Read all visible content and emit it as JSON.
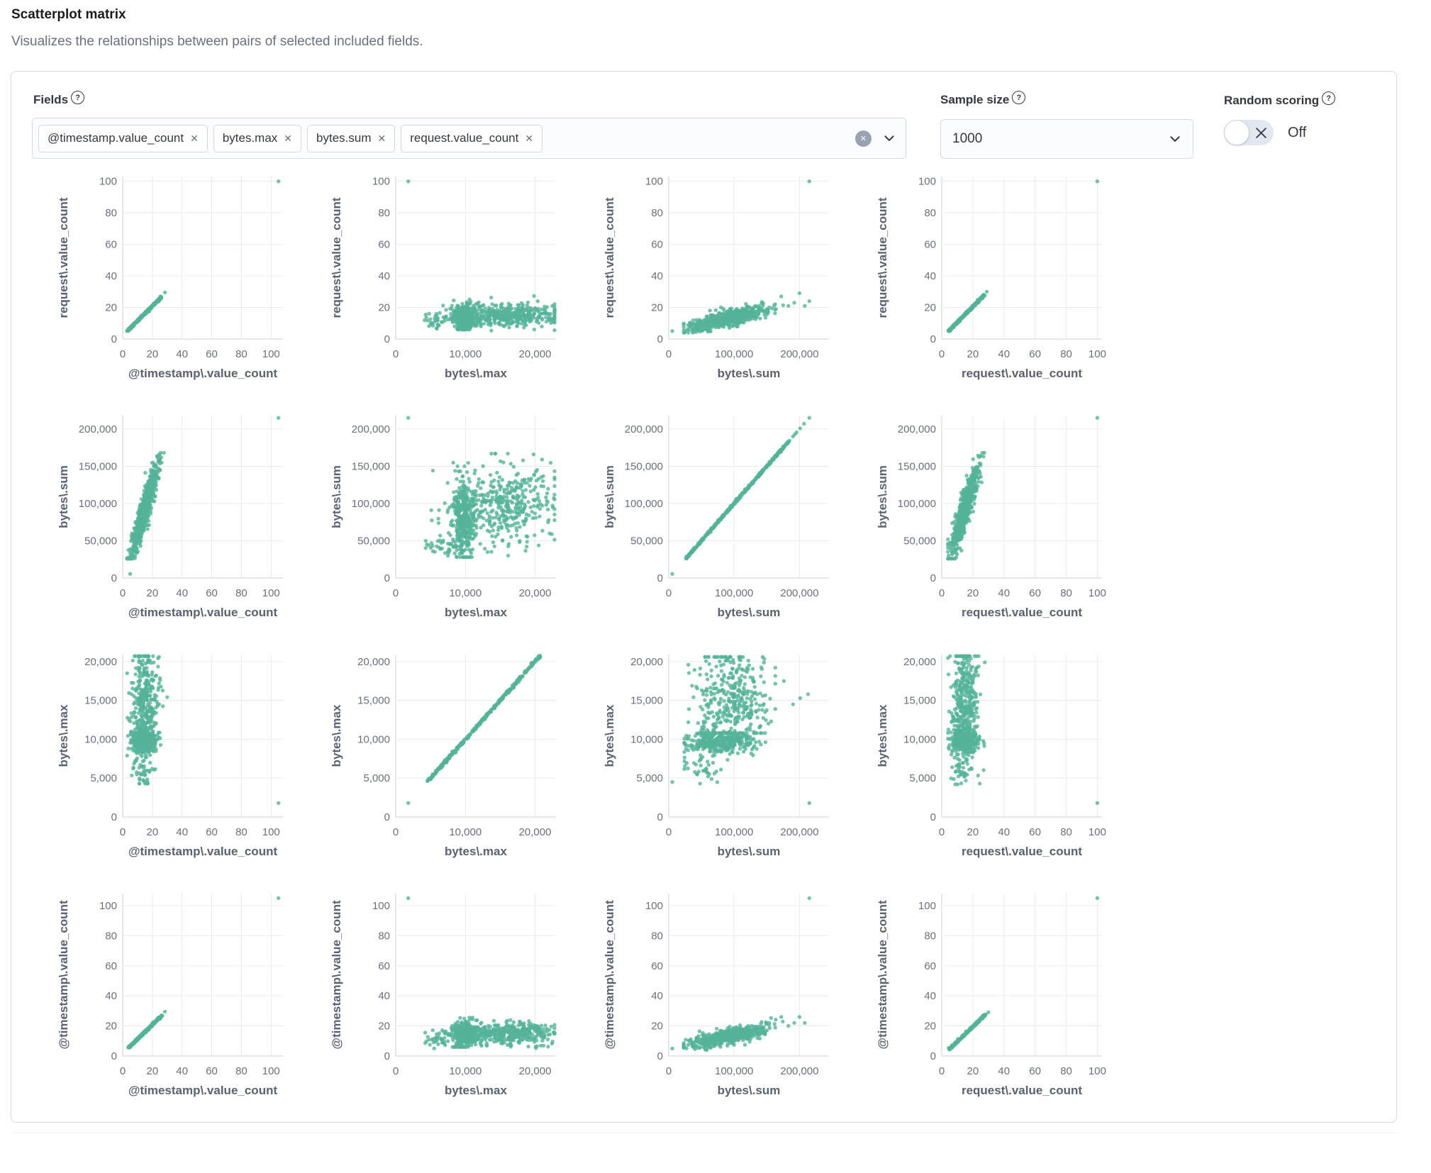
{
  "header": {
    "title": "Scatterplot matrix",
    "subtitle": "Visualizes the relationships between pairs of selected included fields."
  },
  "icons": {
    "help": "?",
    "close": "✕",
    "clear": "✕"
  },
  "controls": {
    "fields": {
      "label": "Fields",
      "selected": [
        "@timestamp.value_count",
        "bytes.max",
        "bytes.sum",
        "request.value_count"
      ]
    },
    "sample_size": {
      "label": "Sample size",
      "value": "1000"
    },
    "random_scoring": {
      "label": "Random scoring",
      "state": "Off"
    }
  },
  "chart_data": {
    "type": "scatter",
    "layout": "scatterplot-matrix",
    "point_color": "#54B399",
    "point_opacity": 0.8,
    "grid_color": "#e8ebf2",
    "domain_color": "#c9d0db",
    "tick_color": "#69707d",
    "title_color": "#5a6270",
    "rows": [
      "request.value_count",
      "bytes.sum",
      "bytes.max",
      "@timestamp.value_count"
    ],
    "cols": [
      "@timestamp.value_count",
      "bytes.max",
      "bytes.sum",
      "request.value_count"
    ],
    "axes": {
      "@timestamp.value_count": {
        "title": "@timestamp\\.value_count",
        "xlim": [
          0,
          108
        ],
        "ylim": [
          0,
          108
        ],
        "xticks": [
          0,
          20,
          40,
          60,
          80,
          100
        ],
        "yticks": [
          0,
          20,
          40,
          60,
          80,
          100
        ],
        "xtick_labels": [
          "0",
          "20",
          "40",
          "60",
          "80",
          "100"
        ],
        "ytick_labels": [
          "0",
          "20",
          "40",
          "60",
          "80",
          "100"
        ]
      },
      "request.value_count": {
        "title": "request\\.value_count",
        "xlim": [
          0,
          103
        ],
        "ylim": [
          0,
          103
        ],
        "xticks": [
          0,
          20,
          40,
          60,
          80,
          100
        ],
        "yticks": [
          0,
          20,
          40,
          60,
          80,
          100
        ],
        "xtick_labels": [
          "0",
          "20",
          "40",
          "60",
          "80",
          "100"
        ],
        "ytick_labels": [
          "0",
          "20",
          "40",
          "60",
          "80",
          "100"
        ]
      },
      "bytes.max": {
        "title": "bytes\\.max",
        "xlim": [
          0,
          23000
        ],
        "ylim": [
          0,
          20900
        ],
        "xticks": [
          0,
          10000,
          20000
        ],
        "yticks": [
          0,
          5000,
          10000,
          15000,
          20000
        ],
        "xtick_labels": [
          "0",
          "10,000",
          "20,000"
        ],
        "ytick_labels": [
          "0",
          "5,000",
          "10,000",
          "15,000",
          "20,000"
        ]
      },
      "bytes.sum": {
        "title": "bytes\\.sum",
        "xlim": [
          0,
          245000
        ],
        "ylim": [
          0,
          218000
        ],
        "xticks": [
          0,
          100000,
          200000
        ],
        "yticks": [
          0,
          50000,
          100000,
          150000,
          200000
        ],
        "xtick_labels": [
          "0",
          "100,000",
          "200,000"
        ],
        "ytick_labels": [
          "0",
          "50,000",
          "100,000",
          "150,000",
          "200,000"
        ]
      }
    },
    "cells": [
      [
        {
          "gen": [
            {
              "kind": "line",
              "x0": 3,
              "y0": 5,
              "x1": 26,
              "y1": 26.5,
              "n": 300,
              "jx": 0.25,
              "jy": 0.25
            },
            {
              "kind": "pts",
              "pts": [
                [
                  28.5,
                  29.5
                ],
                [
                  105,
                  100
                ]
              ]
            }
          ]
        },
        {
          "gen": [
            {
              "kind": "gauss",
              "cx": 9800,
              "sx": 750,
              "cy": 14,
              "sy": 4,
              "n": 340,
              "xclip": [
                6800,
                12500
              ],
              "yclip": [
                6,
                27
              ]
            },
            {
              "kind": "gauss",
              "cx": 15800,
              "sx": 3900,
              "cy": 15,
              "sy": 3.6,
              "n": 420,
              "xclip": [
                4300,
                22800
              ],
              "yclip": [
                5,
                30
              ]
            },
            {
              "kind": "gauss",
              "cx": 5900,
              "sx": 900,
              "cy": 11,
              "sy": 2.5,
              "n": 28,
              "xclip": [
                4000,
                7500
              ],
              "yclip": [
                5,
                16
              ]
            },
            {
              "kind": "pts",
              "pts": [
                [
                  1800,
                  100
                ]
              ]
            }
          ]
        },
        {
          "gen": [
            {
              "kind": "corr",
              "cx": 90000,
              "sx": 30000,
              "xclip": [
                23000,
                175000
              ],
              "a": 4.5,
              "b": 9.5e-05,
              "noise": 2.3,
              "yclip": [
                4,
                31
              ],
              "n": 650
            },
            {
              "kind": "pts",
              "pts": [
                [
                  5500,
                  5
                ],
                [
                  183000,
                  21
                ],
                [
                  192000,
                  23
                ],
                [
                  200000,
                  29
                ],
                [
                  208000,
                  21
                ],
                [
                  215000,
                  24
                ],
                [
                  172000,
                  27
                ]
              ]
            },
            {
              "kind": "pts",
              "pts": [
                [
                  215000,
                  100
                ]
              ]
            }
          ]
        },
        {
          "gen": [
            {
              "kind": "line",
              "x0": 4.5,
              "y0": 5,
              "x1": 27.5,
              "y1": 28,
              "n": 300,
              "jx": 0.25,
              "jy": 0.25
            },
            {
              "kind": "pts",
              "pts": [
                [
                  29,
                  30
                ],
                [
                  100,
                  100
                ]
              ]
            }
          ]
        }
      ],
      [
        {
          "gen": [
            {
              "kind": "corr",
              "cx": 15,
              "sx": 4.6,
              "xclip": [
                3,
                30
              ],
              "a": 0,
              "b": 6200,
              "noise": 13000,
              "yclip": [
                26000,
                168000
              ],
              "n": 680
            },
            {
              "kind": "pts",
              "pts": [
                [
                  5,
                  5500
                ],
                [
                  105,
                  215000
                ]
              ]
            }
          ]
        },
        {
          "gen": [
            {
              "kind": "gauss",
              "cx": 9800,
              "sx": 800,
              "cy": 80000,
              "sy": 26000,
              "n": 330,
              "xclip": [
                6800,
                12500
              ],
              "yclip": [
                28000,
                150000
              ]
            },
            {
              "kind": "gauss",
              "cx": 15500,
              "sx": 3900,
              "cy": 97000,
              "sy": 28000,
              "n": 400,
              "xclip": [
                4300,
                22800
              ],
              "yclip": [
                30000,
                167000
              ]
            },
            {
              "kind": "gauss",
              "cx": 7000,
              "sx": 1400,
              "cy": 42000,
              "sy": 9000,
              "n": 35,
              "xclip": [
                4300,
                10000
              ],
              "yclip": [
                28000,
                60000
              ]
            },
            {
              "kind": "pts",
              "pts": [
                [
                  1800,
                  215000
                ]
              ]
            }
          ]
        },
        {
          "gen": [
            {
              "kind": "line",
              "x0": 25000,
              "y0": 25000,
              "x1": 185000,
              "y1": 185000,
              "n": 430,
              "jx": 600,
              "jy": 600
            },
            {
              "kind": "pts",
              "pts": [
                [
                  5500,
                  5500
                ],
                [
                  190000,
                  190000
                ],
                [
                  195500,
                  195500
                ],
                [
                  201000,
                  201000
                ],
                [
                  207000,
                  207000
                ],
                [
                  215000,
                  215000
                ],
                [
                  193000,
                  193000
                ]
              ]
            }
          ]
        },
        {
          "gen": [
            {
              "kind": "corr",
              "cx": 15,
              "sx": 4.4,
              "xclip": [
                4,
                30
              ],
              "a": 2000,
              "b": 6100,
              "noise": 13000,
              "yclip": [
                26000,
                168000
              ],
              "n": 680
            },
            {
              "kind": "pts",
              "pts": [
                [
                  100,
                  215000
                ]
              ]
            }
          ]
        }
      ],
      [
        {
          "gen": [
            {
              "kind": "gauss",
              "cx": 14.5,
              "sx": 4,
              "cy": 9750,
              "sy": 650,
              "n": 330,
              "xclip": [
                3,
                30
              ],
              "yclip": [
                7800,
                11500
              ]
            },
            {
              "kind": "gauss",
              "cx": 15,
              "sx": 4.6,
              "cy": 14200,
              "sy": 4000,
              "n": 400,
              "xclip": [
                3,
                30
              ],
              "yclip": [
                4300,
                20700
              ]
            },
            {
              "kind": "gauss",
              "cx": 12,
              "sx": 3,
              "cy": 5600,
              "sy": 900,
              "n": 26,
              "xclip": [
                4,
                25
              ],
              "yclip": [
                4200,
                7600
              ]
            },
            {
              "kind": "pts",
              "pts": [
                [
                  105,
                  1800
                ]
              ]
            }
          ]
        },
        {
          "gen": [
            {
              "kind": "line",
              "x0": 4600,
              "y0": 4600,
              "x1": 20700,
              "y1": 20700,
              "n": 340,
              "jx": 80,
              "jy": 80
            },
            {
              "kind": "pts",
              "pts": [
                [
                  1800,
                  1800
                ]
              ]
            }
          ]
        },
        {
          "gen": [
            {
              "kind": "gauss",
              "cx": 80000,
              "sx": 27000,
              "cy": 9700,
              "sy": 620,
              "n": 340,
              "xclip": [
                24000,
                148000
              ],
              "yclip": [
                7800,
                11200
              ]
            },
            {
              "kind": "gauss",
              "cx": 95000,
              "sx": 30000,
              "cy": 15000,
              "sy": 3400,
              "n": 380,
              "xclip": [
                30000,
                163000
              ],
              "yclip": [
                10800,
                20600
              ]
            },
            {
              "kind": "gauss",
              "cx": 48000,
              "sx": 16000,
              "cy": 6800,
              "sy": 1300,
              "n": 45,
              "xclip": [
                24000,
                90000
              ],
              "yclip": [
                4300,
                9300
              ]
            },
            {
              "kind": "pts",
              "pts": [
                [
                  176000,
                  17500
                ],
                [
                  190000,
                  14500
                ],
                [
                  201000,
                  15300
                ],
                [
                  213000,
                  15800
                ],
                [
                  5500,
                  4500
                ],
                [
                  215000,
                  1800
                ]
              ]
            }
          ]
        },
        {
          "gen": [
            {
              "kind": "gauss",
              "cx": 14.5,
              "sx": 4,
              "cy": 9750,
              "sy": 650,
              "n": 330,
              "xclip": [
                4,
                30
              ],
              "yclip": [
                7800,
                11500
              ]
            },
            {
              "kind": "gauss",
              "cx": 15,
              "sx": 4.4,
              "cy": 14200,
              "sy": 4000,
              "n": 400,
              "xclip": [
                4,
                30
              ],
              "yclip": [
                4300,
                20700
              ]
            },
            {
              "kind": "gauss",
              "cx": 12,
              "sx": 3,
              "cy": 5600,
              "sy": 900,
              "n": 26,
              "xclip": [
                5,
                25
              ],
              "yclip": [
                4200,
                7600
              ]
            },
            {
              "kind": "pts",
              "pts": [
                [
                  100,
                  1800
                ]
              ]
            }
          ]
        }
      ],
      [
        {
          "gen": [
            {
              "kind": "line",
              "x0": 4,
              "y0": 5.5,
              "x1": 26.5,
              "y1": 27,
              "n": 300,
              "jx": 0.25,
              "jy": 0.25
            },
            {
              "kind": "pts",
              "pts": [
                [
                  28.5,
                  29.5
                ],
                [
                  105,
                  105
                ]
              ]
            }
          ]
        },
        {
          "gen": [
            {
              "kind": "gauss",
              "cx": 9800,
              "sx": 750,
              "cy": 14,
              "sy": 4,
              "n": 340,
              "xclip": [
                6800,
                12500
              ],
              "yclip": [
                6,
                27
              ]
            },
            {
              "kind": "gauss",
              "cx": 15800,
              "sx": 3900,
              "cy": 15,
              "sy": 3.6,
              "n": 420,
              "xclip": [
                4300,
                22800
              ],
              "yclip": [
                5,
                30
              ]
            },
            {
              "kind": "gauss",
              "cx": 5900,
              "sx": 900,
              "cy": 11,
              "sy": 2.5,
              "n": 28,
              "xclip": [
                4000,
                7500
              ],
              "yclip": [
                5,
                16
              ]
            },
            {
              "kind": "pts",
              "pts": [
                [
                  1800,
                  105
                ]
              ]
            }
          ]
        },
        {
          "gen": [
            {
              "kind": "corr",
              "cx": 90000,
              "sx": 30000,
              "xclip": [
                23000,
                175000
              ],
              "a": 4.5,
              "b": 9.5e-05,
              "noise": 2.3,
              "yclip": [
                4,
                31
              ],
              "n": 650
            },
            {
              "kind": "pts",
              "pts": [
                [
                  5500,
                  5
                ],
                [
                  183000,
                  20
                ],
                [
                  192000,
                  22
                ],
                [
                  200000,
                  26
                ],
                [
                  208000,
                  22
                ],
                [
                  172000,
                  26
                ]
              ]
            },
            {
              "kind": "pts",
              "pts": [
                [
                  215000,
                  105
                ]
              ]
            }
          ]
        },
        {
          "gen": [
            {
              "kind": "line",
              "x0": 5,
              "y0": 4.5,
              "x1": 28,
              "y1": 27.5,
              "n": 300,
              "jx": 0.25,
              "jy": 0.25
            },
            {
              "kind": "pts",
              "pts": [
                [
                  30,
                  29
                ],
                [
                  100,
                  105
                ]
              ]
            }
          ]
        }
      ]
    ]
  }
}
